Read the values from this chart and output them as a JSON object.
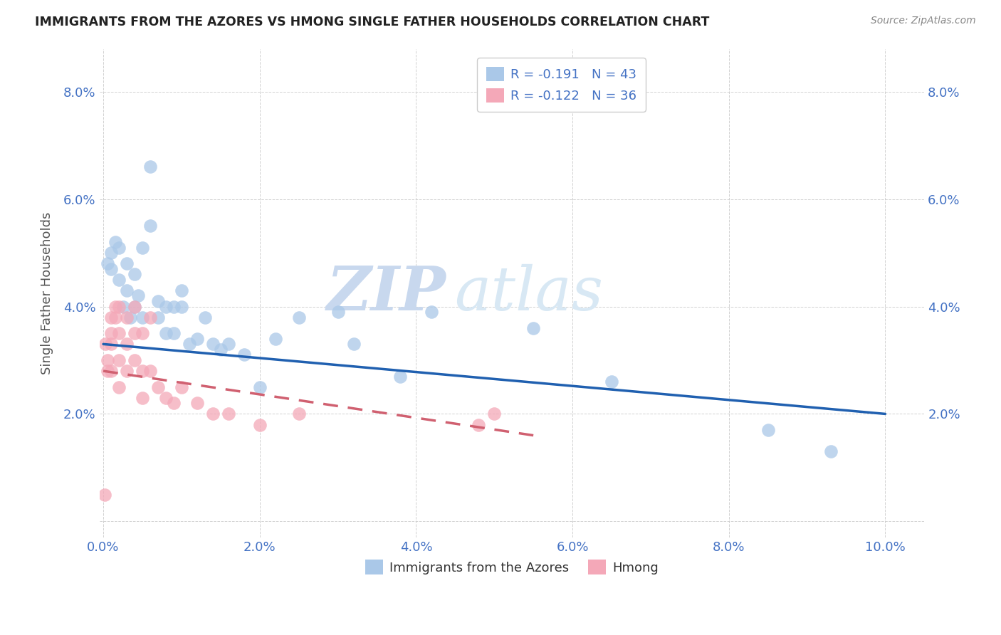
{
  "title": "IMMIGRANTS FROM THE AZORES VS HMONG SINGLE FATHER HOUSEHOLDS CORRELATION CHART",
  "source": "Source: ZipAtlas.com",
  "ylabel": "Single Father Households",
  "watermark_zip": "ZIP",
  "watermark_atlas": "atlas",
  "legend_r1": "R = -0.191   N = 43",
  "legend_r2": "R = -0.122   N = 36",
  "blue_color": "#aac8e8",
  "pink_color": "#f4a8b8",
  "blue_line_color": "#2060b0",
  "pink_line_color": "#d06070",
  "xlim": [
    -0.0005,
    0.105
  ],
  "ylim": [
    -0.003,
    0.088
  ],
  "x_ticks": [
    0.0,
    0.02,
    0.04,
    0.06,
    0.08,
    0.1
  ],
  "x_tick_labels": [
    "0.0%",
    "2.0%",
    "4.0%",
    "6.0%",
    "8.0%",
    "10.0%"
  ],
  "y_ticks": [
    0.0,
    0.02,
    0.04,
    0.06,
    0.08
  ],
  "y_tick_labels": [
    "",
    "2.0%",
    "4.0%",
    "6.0%",
    "8.0%"
  ],
  "tick_color": "#4472c4",
  "azores_points_x": [
    0.0005,
    0.001,
    0.001,
    0.0015,
    0.002,
    0.002,
    0.0025,
    0.003,
    0.003,
    0.0035,
    0.004,
    0.004,
    0.0045,
    0.005,
    0.005,
    0.006,
    0.006,
    0.007,
    0.007,
    0.008,
    0.008,
    0.009,
    0.009,
    0.01,
    0.01,
    0.011,
    0.012,
    0.013,
    0.014,
    0.015,
    0.016,
    0.018,
    0.02,
    0.022,
    0.025,
    0.03,
    0.032,
    0.038,
    0.042,
    0.055,
    0.065,
    0.085,
    0.093
  ],
  "azores_points_y": [
    0.048,
    0.05,
    0.047,
    0.052,
    0.051,
    0.045,
    0.04,
    0.048,
    0.043,
    0.038,
    0.046,
    0.04,
    0.042,
    0.051,
    0.038,
    0.066,
    0.055,
    0.041,
    0.038,
    0.04,
    0.035,
    0.04,
    0.035,
    0.043,
    0.04,
    0.033,
    0.034,
    0.038,
    0.033,
    0.032,
    0.033,
    0.031,
    0.025,
    0.034,
    0.038,
    0.039,
    0.033,
    0.027,
    0.039,
    0.036,
    0.026,
    0.017,
    0.013
  ],
  "hmong_points_x": [
    0.0002,
    0.0003,
    0.0005,
    0.0005,
    0.001,
    0.001,
    0.001,
    0.001,
    0.0015,
    0.0015,
    0.002,
    0.002,
    0.002,
    0.002,
    0.003,
    0.003,
    0.003,
    0.004,
    0.004,
    0.004,
    0.005,
    0.005,
    0.005,
    0.006,
    0.006,
    0.007,
    0.008,
    0.009,
    0.01,
    0.012,
    0.014,
    0.016,
    0.02,
    0.025,
    0.048,
    0.05
  ],
  "hmong_points_y": [
    0.005,
    0.033,
    0.03,
    0.028,
    0.038,
    0.035,
    0.033,
    0.028,
    0.04,
    0.038,
    0.04,
    0.035,
    0.03,
    0.025,
    0.038,
    0.033,
    0.028,
    0.04,
    0.035,
    0.03,
    0.035,
    0.028,
    0.023,
    0.038,
    0.028,
    0.025,
    0.023,
    0.022,
    0.025,
    0.022,
    0.02,
    0.02,
    0.018,
    0.02,
    0.018,
    0.02
  ],
  "blue_line_x0": 0.0,
  "blue_line_y0": 0.033,
  "blue_line_x1": 0.1,
  "blue_line_y1": 0.02,
  "pink_line_x0": 0.0,
  "pink_line_y0": 0.028,
  "pink_line_x1": 0.055,
  "pink_line_y1": 0.016
}
